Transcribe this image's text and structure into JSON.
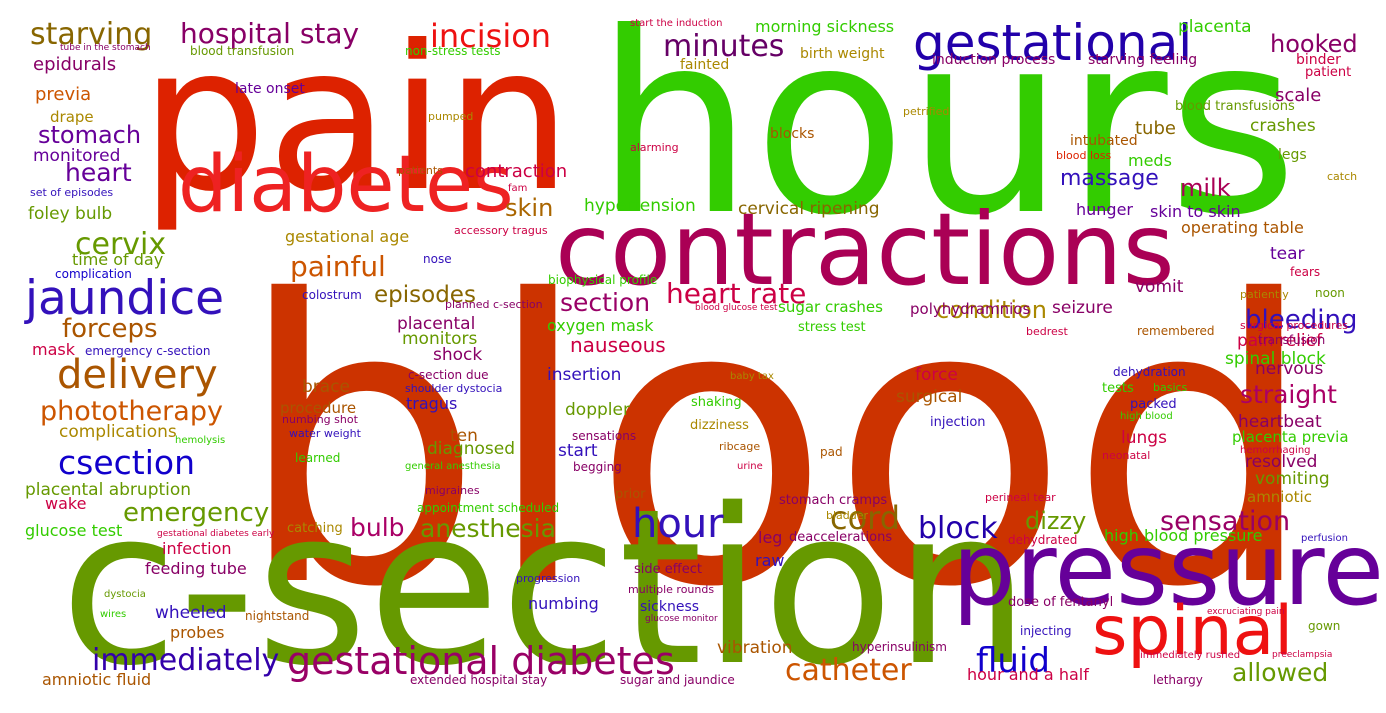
{
  "words": [
    {
      "text": "blood",
      "color": "#cc3300"
    },
    {
      "text": "hours",
      "color": "#33cc00"
    },
    {
      "text": "pain",
      "color": "#dd2200"
    },
    {
      "text": "c-section",
      "color": "#669900"
    },
    {
      "text": "contractions",
      "color": "#aa0055"
    },
    {
      "text": "diabetes",
      "color": "#ee2222"
    },
    {
      "text": "pressure",
      "color": "#660099"
    },
    {
      "text": "spinal",
      "color": "#ee1111"
    },
    {
      "text": "gestational",
      "color": "#2200aa"
    },
    {
      "text": "jaundice",
      "color": "#3311bb"
    },
    {
      "text": "gestational diabetes",
      "color": "#990066"
    },
    {
      "text": "delivery",
      "color": "#aa5500"
    },
    {
      "text": "hour",
      "color": "#3311bb"
    },
    {
      "text": "csection",
      "color": "#1100cc"
    },
    {
      "text": "incision",
      "color": "#ee1111"
    },
    {
      "text": "hospital stay",
      "color": "#880066"
    },
    {
      "text": "starving",
      "color": "#886600"
    },
    {
      "text": "minutes",
      "color": "#660066"
    },
    {
      "text": "heart rate",
      "color": "#cc0044"
    },
    {
      "text": "cervix",
      "color": "#669900"
    },
    {
      "text": "painful",
      "color": "#cc5500"
    },
    {
      "text": "episodes",
      "color": "#886600"
    },
    {
      "text": "section",
      "color": "#990066"
    },
    {
      "text": "condition",
      "color": "#aa8800"
    },
    {
      "text": "phototherapy",
      "color": "#cc5500"
    },
    {
      "text": "forceps",
      "color": "#aa5500"
    },
    {
      "text": "emergency",
      "color": "#669900"
    },
    {
      "text": "anesthesia",
      "color": "#669900"
    },
    {
      "text": "bulb",
      "color": "#aa0066"
    },
    {
      "text": "cord",
      "color": "#886600"
    },
    {
      "text": "block",
      "color": "#2200aa"
    },
    {
      "text": "sensation",
      "color": "#990066"
    },
    {
      "text": "catheter",
      "color": "#cc5500"
    },
    {
      "text": "fluid",
      "color": "#1100cc"
    },
    {
      "text": "immediately",
      "color": "#3300aa"
    },
    {
      "text": "heart",
      "color": "#660099"
    },
    {
      "text": "stomach",
      "color": "#660099"
    },
    {
      "text": "massage",
      "color": "#3311bb"
    },
    {
      "text": "milk",
      "color": "#aa0055"
    },
    {
      "text": "hooked",
      "color": "#880066"
    },
    {
      "text": "bleeding",
      "color": "#3311bb"
    },
    {
      "text": "straight",
      "color": "#aa0066"
    },
    {
      "text": "allowed",
      "color": "#669900"
    },
    {
      "text": "dizzy",
      "color": "#669900"
    },
    {
      "text": "skin",
      "color": "#aa6600"
    },
    {
      "text": "nauseous",
      "color": "#cc0044"
    },
    {
      "text": "placenta",
      "color": "#33cc00"
    },
    {
      "text": "morning sickness",
      "color": "#33cc00"
    },
    {
      "text": "birth weight",
      "color": "#aa8800"
    },
    {
      "text": "fainted",
      "color": "#aa8800"
    },
    {
      "text": "induction process",
      "color": "#880066"
    },
    {
      "text": "starving feeling",
      "color": "#880066"
    },
    {
      "text": "binder",
      "color": "#cc0044"
    },
    {
      "text": "patient",
      "color": "#cc0044"
    },
    {
      "text": "epidurals",
      "color": "#880066"
    },
    {
      "text": "previa",
      "color": "#cc5500"
    },
    {
      "text": "drape",
      "color": "#aa8800"
    },
    {
      "text": "monitored",
      "color": "#660099"
    },
    {
      "text": "late onset",
      "color": "#660099"
    },
    {
      "text": "pumped",
      "color": "#aa8800"
    },
    {
      "text": "petrified",
      "color": "#aa8800"
    },
    {
      "text": "blocks",
      "color": "#aa5500"
    },
    {
      "text": "alarming",
      "color": "#cc0044"
    },
    {
      "text": "scale",
      "color": "#880066"
    },
    {
      "text": "tube",
      "color": "#886600"
    },
    {
      "text": "intubated",
      "color": "#aa5500"
    },
    {
      "text": "crashes",
      "color": "#669900"
    },
    {
      "text": "blood transfusions",
      "color": "#669900"
    },
    {
      "text": "blood loss",
      "color": "#dd2200"
    },
    {
      "text": "meds",
      "color": "#33cc00"
    },
    {
      "text": "legs",
      "color": "#669900"
    },
    {
      "text": "catch",
      "color": "#aa8800"
    },
    {
      "text": "contraction",
      "color": "#cc0044"
    },
    {
      "text": "patients",
      "color": "#aa5500"
    },
    {
      "text": "fam",
      "color": "#cc0044"
    },
    {
      "text": "set of episodes",
      "color": "#3311bb"
    },
    {
      "text": "foley bulb",
      "color": "#669900"
    },
    {
      "text": "hypertension",
      "color": "#33cc00"
    },
    {
      "text": "cervical ripening",
      "color": "#886600"
    },
    {
      "text": "hunger",
      "color": "#660099"
    },
    {
      "text": "skin to skin",
      "color": "#660099"
    },
    {
      "text": "operating table",
      "color": "#aa5500"
    },
    {
      "text": "gestational age",
      "color": "#aa8800"
    },
    {
      "text": "accessory tragus",
      "color": "#cc0044"
    },
    {
      "text": "time of day",
      "color": "#669900"
    },
    {
      "text": "nose",
      "color": "#3311bb"
    },
    {
      "text": "tear",
      "color": "#660099"
    },
    {
      "text": "fears",
      "color": "#cc0044"
    },
    {
      "text": "noon",
      "color": "#669900"
    },
    {
      "text": "complication",
      "color": "#1100cc"
    },
    {
      "text": "biophysical profile",
      "color": "#33cc00"
    },
    {
      "text": "patiently",
      "color": "#aa8800"
    },
    {
      "text": "colostrum",
      "color": "#3311bb"
    },
    {
      "text": "planned c-section",
      "color": "#880066"
    },
    {
      "text": "blood glucose test",
      "color": "#cc0044"
    },
    {
      "text": "sugar crashes",
      "color": "#33cc00"
    },
    {
      "text": "polyhydramnios",
      "color": "#880066"
    },
    {
      "text": "seizure",
      "color": "#880066"
    },
    {
      "text": "vomit",
      "color": "#880066"
    },
    {
      "text": "remembered",
      "color": "#aa5500"
    },
    {
      "text": "pain relief",
      "color": "#cc0044"
    },
    {
      "text": "surgical procedures",
      "color": "#cc0044"
    },
    {
      "text": "mask",
      "color": "#cc0044"
    },
    {
      "text": "emergency c-section",
      "color": "#3311bb"
    },
    {
      "text": "monitors",
      "color": "#669900"
    },
    {
      "text": "placental",
      "color": "#880066"
    },
    {
      "text": "oxygen mask",
      "color": "#33cc00"
    },
    {
      "text": "stress test",
      "color": "#33cc00"
    },
    {
      "text": "bedrest",
      "color": "#cc0044"
    },
    {
      "text": "transfusion",
      "color": "#880066"
    },
    {
      "text": "shock",
      "color": "#880066"
    },
    {
      "text": "spinal block",
      "color": "#33cc00"
    },
    {
      "text": "nervous",
      "color": "#880066"
    },
    {
      "text": "dehydration",
      "color": "#3311bb"
    },
    {
      "text": "c-section due",
      "color": "#880066"
    },
    {
      "text": "insertion",
      "color": "#3311bb"
    },
    {
      "text": "shoulder dystocia",
      "color": "#3311bb"
    },
    {
      "text": "brace",
      "color": "#aa5500"
    },
    {
      "text": "baby tax",
      "color": "#aa8800"
    },
    {
      "text": "force",
      "color": "#cc0044"
    },
    {
      "text": "tests",
      "color": "#33cc00"
    },
    {
      "text": "basics",
      "color": "#33cc00"
    },
    {
      "text": "procedure",
      "color": "#aa5500"
    },
    {
      "text": "tragus",
      "color": "#3311bb"
    },
    {
      "text": "doppler",
      "color": "#669900"
    },
    {
      "text": "shaking",
      "color": "#33cc00"
    },
    {
      "text": "surgical",
      "color": "#aa5500"
    },
    {
      "text": "packed",
      "color": "#3311bb"
    },
    {
      "text": "high blood",
      "color": "#33cc00"
    },
    {
      "text": "numbing shot",
      "color": "#880066"
    },
    {
      "text": "water weight",
      "color": "#3311bb"
    },
    {
      "text": "injection",
      "color": "#3311bb"
    },
    {
      "text": "heartbeat",
      "color": "#880066"
    },
    {
      "text": "complications",
      "color": "#aa8800"
    },
    {
      "text": "hemolysis",
      "color": "#33cc00"
    },
    {
      "text": "ten",
      "color": "#aa5500"
    },
    {
      "text": "sensations",
      "color": "#880066"
    },
    {
      "text": "dizziness",
      "color": "#aa8800"
    },
    {
      "text": "lungs",
      "color": "#cc0044"
    },
    {
      "text": "placenta previa",
      "color": "#33cc00"
    },
    {
      "text": "diagnosed",
      "color": "#669900"
    },
    {
      "text": "start",
      "color": "#3311bb"
    },
    {
      "text": "learned",
      "color": "#33cc00"
    },
    {
      "text": "general anesthesia",
      "color": "#33cc00"
    },
    {
      "text": "begging",
      "color": "#880066"
    },
    {
      "text": "ribcage",
      "color": "#aa5500"
    },
    {
      "text": "urine",
      "color": "#cc0044"
    },
    {
      "text": "pad",
      "color": "#aa5500"
    },
    {
      "text": "neonatal",
      "color": "#cc0044"
    },
    {
      "text": "hemorrhaging",
      "color": "#cc0044"
    },
    {
      "text": "resolved",
      "color": "#880066"
    },
    {
      "text": "placental abruption",
      "color": "#669900"
    },
    {
      "text": "migraines",
      "color": "#880066"
    },
    {
      "text": "prior",
      "color": "#aa5500"
    },
    {
      "text": "vomiting",
      "color": "#669900"
    },
    {
      "text": "wake",
      "color": "#cc0044"
    },
    {
      "text": "appointment scheduled",
      "color": "#33cc00"
    },
    {
      "text": "stomach cramps",
      "color": "#880066"
    },
    {
      "text": "perineal tear",
      "color": "#cc0044"
    },
    {
      "text": "amniotic",
      "color": "#aa8800"
    },
    {
      "text": "glucose test",
      "color": "#33cc00"
    },
    {
      "text": "catching",
      "color": "#aa8800"
    },
    {
      "text": "gestational diabetes early",
      "color": "#cc0044"
    },
    {
      "text": "bladder",
      "color": "#aa8800"
    },
    {
      "text": "leg",
      "color": "#880066"
    },
    {
      "text": "deaccelerations",
      "color": "#880066"
    },
    {
      "text": "dehydrated",
      "color": "#cc0044"
    },
    {
      "text": "high blood pressure",
      "color": "#33cc00"
    },
    {
      "text": "perfusion",
      "color": "#3311bb"
    },
    {
      "text": "infection",
      "color": "#cc0044"
    },
    {
      "text": "raw",
      "color": "#3311bb"
    },
    {
      "text": "feeding tube",
      "color": "#880066"
    },
    {
      "text": "side effect",
      "color": "#880066"
    },
    {
      "text": "progression",
      "color": "#3311bb"
    },
    {
      "text": "dystocia",
      "color": "#669900"
    },
    {
      "text": "multiple rounds",
      "color": "#880066"
    },
    {
      "text": "numbing",
      "color": "#3311bb"
    },
    {
      "text": "dose of fentanyl",
      "color": "#880066"
    },
    {
      "text": "excruciating pain",
      "color": "#cc0044"
    },
    {
      "text": "wheeled",
      "color": "#3311bb"
    },
    {
      "text": "nightstand",
      "color": "#aa5500"
    },
    {
      "text": "wires",
      "color": "#33cc00"
    },
    {
      "text": "sickness",
      "color": "#3311bb"
    },
    {
      "text": "glucose monitor",
      "color": "#880066"
    },
    {
      "text": "probes",
      "color": "#aa5500"
    },
    {
      "text": "injecting",
      "color": "#3311bb"
    },
    {
      "text": "gown",
      "color": "#669900"
    },
    {
      "text": "vibration",
      "color": "#aa5500"
    },
    {
      "text": "hyperinsulinism",
      "color": "#880066"
    },
    {
      "text": "preeclampsia",
      "color": "#cc0044"
    },
    {
      "text": "hour and a half",
      "color": "#cc0044"
    },
    {
      "text": "immediately rushed",
      "color": "#cc0044"
    },
    {
      "text": "amniotic fluid",
      "color": "#aa5500"
    },
    {
      "text": "extended hospital stay",
      "color": "#880066"
    },
    {
      "text": "sugar and jaundice",
      "color": "#880066"
    },
    {
      "text": "lethargy",
      "color": "#880066"
    },
    {
      "text": "tube in the stomach",
      "color": "#880066"
    },
    {
      "text": "blood transfusion",
      "color": "#669900"
    },
    {
      "text": "non-stress tests",
      "color": "#33cc00"
    },
    {
      "text": "start the induction",
      "color": "#cc0044"
    }
  ]
}
